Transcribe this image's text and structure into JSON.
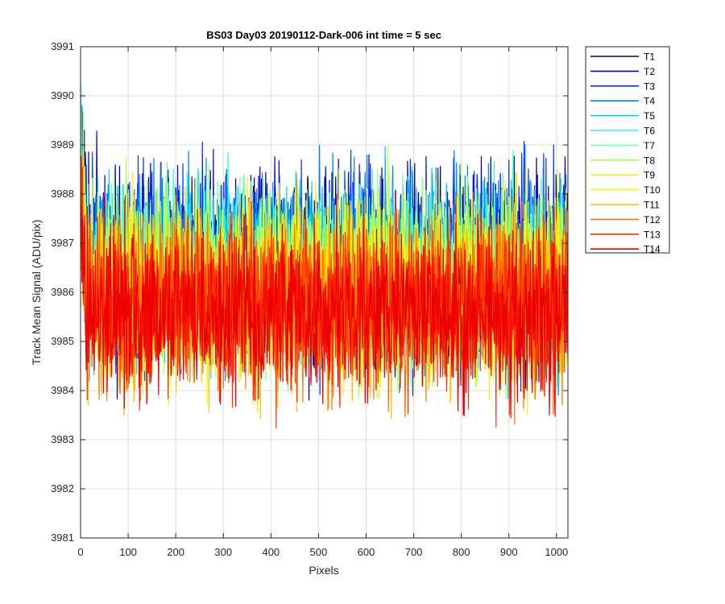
{
  "chart_data": {
    "type": "line",
    "title": "BS03 Day03 20190112-Dark-006 int time = 5 sec",
    "xlabel": "Pixels",
    "ylabel": "Track Mean Signal (ADU/pix)",
    "xlim": [
      0,
      1024
    ],
    "ylim": [
      3981,
      3991
    ],
    "x_ticks": [
      "0",
      "100",
      "200",
      "300",
      "400",
      "500",
      "600",
      "700",
      "800",
      "900",
      "1000"
    ],
    "y_ticks": [
      "3981",
      "3982",
      "3983",
      "3984",
      "3985",
      "3986",
      "3987",
      "3988",
      "3989",
      "3990",
      "3991"
    ],
    "grid": true,
    "legend_position": "outside-right-top",
    "x_count": 1024,
    "series": [
      {
        "name": "T1",
        "color": "#00008F",
        "level": 3986.6,
        "spread": 0.95
      },
      {
        "name": "T2",
        "color": "#0000DF",
        "level": 3986.5,
        "spread": 0.95
      },
      {
        "name": "T3",
        "color": "#0030FF",
        "level": 3986.5,
        "spread": 0.95
      },
      {
        "name": "T4",
        "color": "#0080FF",
        "level": 3986.6,
        "spread": 0.95
      },
      {
        "name": "T5",
        "color": "#00CFFF",
        "level": 3986.4,
        "spread": 0.9
      },
      {
        "name": "T6",
        "color": "#20FFDF",
        "level": 3986.3,
        "spread": 0.9
      },
      {
        "name": "T7",
        "color": "#70FFAF",
        "level": 3986.3,
        "spread": 0.9
      },
      {
        "name": "T8",
        "color": "#9FFF60",
        "level": 3986.2,
        "spread": 0.9
      },
      {
        "name": "T9",
        "color": "#CFFF30",
        "level": 3986.1,
        "spread": 0.9
      },
      {
        "name": "T10",
        "color": "#FFEF00",
        "level": 3986.0,
        "spread": 0.9
      },
      {
        "name": "T11",
        "color": "#FFBF00",
        "level": 3985.9,
        "spread": 0.9
      },
      {
        "name": "T12",
        "color": "#FF7000",
        "level": 3985.8,
        "spread": 0.9
      },
      {
        "name": "T13",
        "color": "#FF3000",
        "level": 3985.7,
        "spread": 0.85
      },
      {
        "name": "T14",
        "color": "#EF0000",
        "level": 3985.6,
        "spread": 0.85
      }
    ]
  }
}
